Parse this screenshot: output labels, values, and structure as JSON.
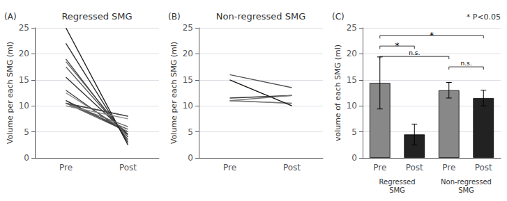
{
  "chart_data": [
    {
      "type": "line",
      "title": "Regressed SMG",
      "annotations": [
        "(A)"
      ],
      "ylabel": "Volume per each SMG (ml)",
      "categories": [
        "Pre",
        "Post"
      ],
      "series": [
        {
          "color": "#555555",
          "values": [
            10.5,
            8.0
          ]
        },
        {
          "color": "#444444",
          "values": [
            10.5,
            8.0
          ]
        },
        {
          "color": "#666666",
          "values": [
            10.5,
            5.0
          ]
        },
        {
          "color": "#777777",
          "values": [
            11.0,
            5.0
          ]
        },
        {
          "color": "#333333",
          "values": [
            11.0,
            5.0
          ]
        },
        {
          "color": "#888888",
          "values": [
            12.5,
            5.0
          ]
        },
        {
          "color": "#444444",
          "values": [
            13.0,
            4.5
          ]
        },
        {
          "color": "#333333",
          "values": [
            15.5,
            4.5
          ]
        },
        {
          "color": "#555555",
          "values": [
            17.5,
            4.0
          ]
        },
        {
          "color": "#666666",
          "values": [
            18.5,
            4.0
          ]
        },
        {
          "color": "#444444",
          "values": [
            19.0,
            3.5
          ]
        },
        {
          "color": "#333333",
          "values": [
            22.0,
            3.0
          ]
        },
        {
          "color": "#222222",
          "values": [
            25.0,
            2.5
          ]
        },
        {
          "color": "#555555",
          "values": [
            10.5,
            5.5
          ]
        },
        {
          "color": "#666666",
          "values": [
            10.5,
            6.0
          ]
        },
        {
          "color": "#888888",
          "values": [
            10.0,
            7.5
          ]
        }
      ],
      "ylim": [
        0,
        25
      ],
      "yticks": [
        0,
        5,
        10,
        15,
        20,
        25
      ],
      "grid": true
    },
    {
      "type": "line",
      "title": "Non-regressed SMG",
      "annotations": [
        "(B)"
      ],
      "ylabel": "Volume per each SMG (ml)",
      "categories": [
        "Pre",
        "Post"
      ],
      "series": [
        {
          "color": "#aaaaaa",
          "values": [
            11.0,
            10.5
          ]
        },
        {
          "color": "#777777",
          "values": [
            11.0,
            10.5
          ]
        },
        {
          "color": "#333333",
          "values": [
            11.5,
            12.0
          ]
        },
        {
          "color": "#111111",
          "values": [
            15.0,
            10.0
          ]
        },
        {
          "color": "#555555",
          "values": [
            16.0,
            13.5
          ]
        },
        {
          "color": "#777777",
          "values": [
            11.0,
            12.0
          ]
        }
      ],
      "ylim": [
        0,
        25
      ],
      "yticks": [
        0,
        5,
        10,
        15,
        20,
        25
      ],
      "grid": true
    },
    {
      "type": "bar",
      "annotations": [
        "(C)",
        "* P<0.05"
      ],
      "ylabel": "volume of each SMG (ml)",
      "categories": [
        "Pre",
        "Post",
        "Pre",
        "Post"
      ],
      "group_labels": [
        "Regressed\nSMG",
        "Non-regressed\nSMG"
      ],
      "values": [
        14.4,
        4.5,
        13.0,
        11.5
      ],
      "errors": [
        5.0,
        2.0,
        1.5,
        1.5
      ],
      "colors": [
        "#888888",
        "#222222",
        "#888888",
        "#222222"
      ],
      "brackets": [
        {
          "from": 0,
          "to": 1,
          "y": 21.5,
          "label": "*"
        },
        {
          "from": 0,
          "to": 3,
          "y": 23.5,
          "label": "*"
        },
        {
          "from": 0,
          "to": 2,
          "y": 19.5,
          "label": "n.s."
        },
        {
          "from": 2,
          "to": 3,
          "y": 17.5,
          "label": "n.s."
        }
      ],
      "ylim": [
        0,
        25
      ],
      "yticks": [
        0,
        5,
        10,
        15,
        20,
        25
      ],
      "grid": true
    }
  ]
}
